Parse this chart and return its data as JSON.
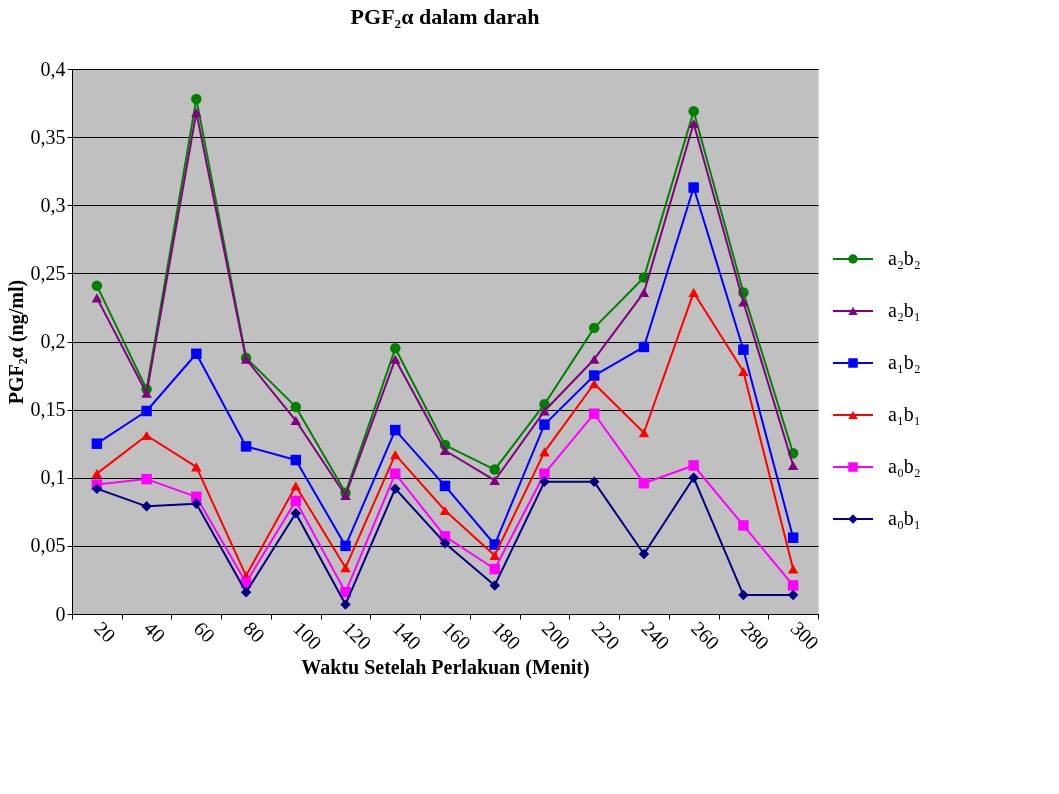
{
  "chart_data": {
    "type": "line",
    "title": "PGF₂α dalam darah",
    "xlabel": "Waktu Setelah Perlakuan (Menit)",
    "ylabel": "PGF₂α (ng/ml)",
    "categories": [
      "20",
      "40",
      "60",
      "80",
      "100",
      "120",
      "140",
      "160",
      "180",
      "200",
      "220",
      "240",
      "260",
      "280",
      "300"
    ],
    "series": [
      {
        "name": "a₂b₂",
        "color": "#008000",
        "marker": "circle",
        "values": [
          0.241,
          0.165,
          0.378,
          0.188,
          0.152,
          0.089,
          0.195,
          0.124,
          0.106,
          0.154,
          0.21,
          0.247,
          0.369,
          0.236,
          0.118
        ]
      },
      {
        "name": "a₂b₁",
        "color": "#800080",
        "marker": "triangle",
        "values": [
          0.232,
          0.162,
          0.368,
          0.187,
          0.142,
          0.087,
          0.187,
          0.12,
          0.098,
          0.149,
          0.187,
          0.236,
          0.36,
          0.229,
          0.109
        ]
      },
      {
        "name": "a₁b₂",
        "color": "#0000ff",
        "marker": "square",
        "values": [
          0.125,
          0.149,
          0.191,
          0.123,
          0.113,
          0.05,
          0.135,
          0.094,
          0.051,
          0.139,
          0.175,
          0.196,
          0.313,
          0.194,
          0.056
        ]
      },
      {
        "name": "a₁b₁",
        "color": "#ff0000",
        "marker": "triangle",
        "values": [
          0.103,
          0.131,
          0.108,
          0.028,
          0.094,
          0.034,
          0.117,
          0.076,
          0.043,
          0.119,
          0.169,
          0.133,
          0.236,
          0.178,
          0.033
        ]
      },
      {
        "name": "a₀b₂",
        "color": "#ff00ff",
        "marker": "square",
        "values": [
          0.095,
          0.099,
          0.086,
          0.023,
          0.083,
          0.016,
          0.103,
          0.057,
          0.033,
          0.103,
          0.147,
          0.096,
          0.109,
          0.065,
          0.021
        ]
      },
      {
        "name": "a₀b₁",
        "color": "#000080",
        "marker": "diamond",
        "values": [
          0.092,
          0.079,
          0.081,
          0.016,
          0.074,
          0.007,
          0.092,
          0.052,
          0.021,
          0.097,
          0.097,
          0.044,
          0.1,
          0.014,
          0.014
        ]
      }
    ],
    "ylim": [
      0,
      0.4
    ],
    "yticks": [
      0,
      {
        "value": 0.05,
        "label": "0,05"
      },
      {
        "value": 0.1,
        "label": "0,1"
      },
      {
        "value": 0.15,
        "label": "0,15"
      },
      {
        "value": 0.2,
        "label": "0,2"
      },
      {
        "value": 0.25,
        "label": "0,25"
      },
      {
        "value": 0.3,
        "label": "0,3"
      },
      {
        "value": 0.35,
        "label": "0,35"
      },
      {
        "value": 0.4,
        "label": "0,4"
      }
    ],
    "grid": "y",
    "legend": "right",
    "line_style": "solid"
  }
}
